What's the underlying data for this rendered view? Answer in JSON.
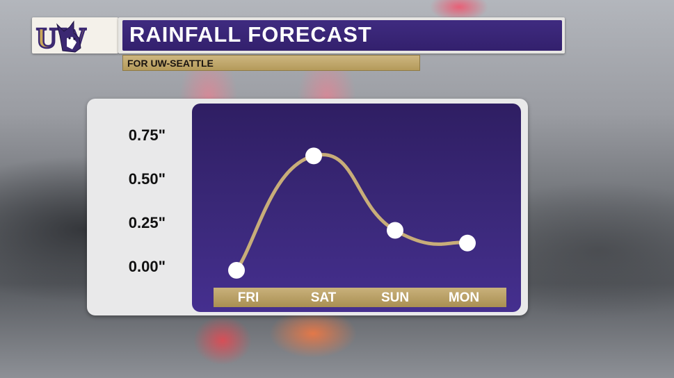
{
  "header": {
    "logo_text": "UW",
    "title": "RAINFALL FORECAST",
    "subtitle": "FOR UW-SEATTLE"
  },
  "colors": {
    "purple": "#33206d",
    "gold": "#c9b17b",
    "curve": "#c8ad79",
    "marker": "#ffffff"
  },
  "chart_data": {
    "type": "line",
    "title": "RAINFALL FORECAST",
    "subtitle": "FOR UW-SEATTLE",
    "categories": [
      "FRI",
      "SAT",
      "SUN",
      "MON"
    ],
    "series": [
      {
        "values": [
          0.0,
          0.63,
          0.22,
          0.15
        ]
      }
    ],
    "yticks": [
      "0.00\"",
      "0.25\"",
      "0.50\"",
      "0.75\""
    ],
    "ytick_values": [
      0,
      0.25,
      0.5,
      0.75
    ],
    "ylim": [
      0,
      0.75
    ],
    "smooth": true,
    "grid": false,
    "legend": "none"
  }
}
